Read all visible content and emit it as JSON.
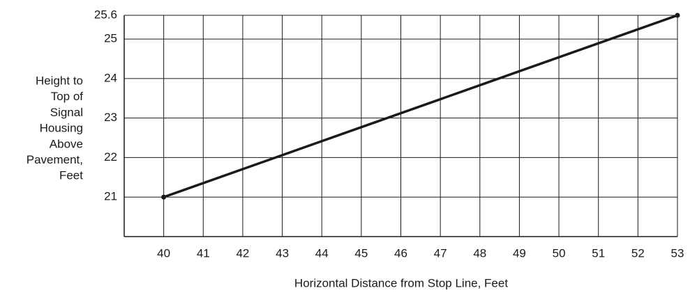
{
  "chart_data": {
    "type": "line",
    "x_label": "Horizontal Distance from Stop Line, Feet",
    "y_label": [
      "Height to",
      "Top of",
      "Signal",
      "Housing",
      "Above",
      "Pavement,",
      "Feet"
    ],
    "x": [
      40,
      53
    ],
    "series": [
      {
        "color": "#1a1a1a",
        "values": [
          21,
          25.6
        ]
      }
    ],
    "xlim": [
      39,
      53
    ],
    "ylim": [
      20,
      25.6
    ],
    "xticks": [
      40,
      41,
      42,
      43,
      44,
      45,
      46,
      47,
      48,
      49,
      50,
      51,
      52,
      53
    ],
    "yticks": [
      21,
      22,
      23,
      24,
      25,
      25.6
    ],
    "grid": true
  }
}
